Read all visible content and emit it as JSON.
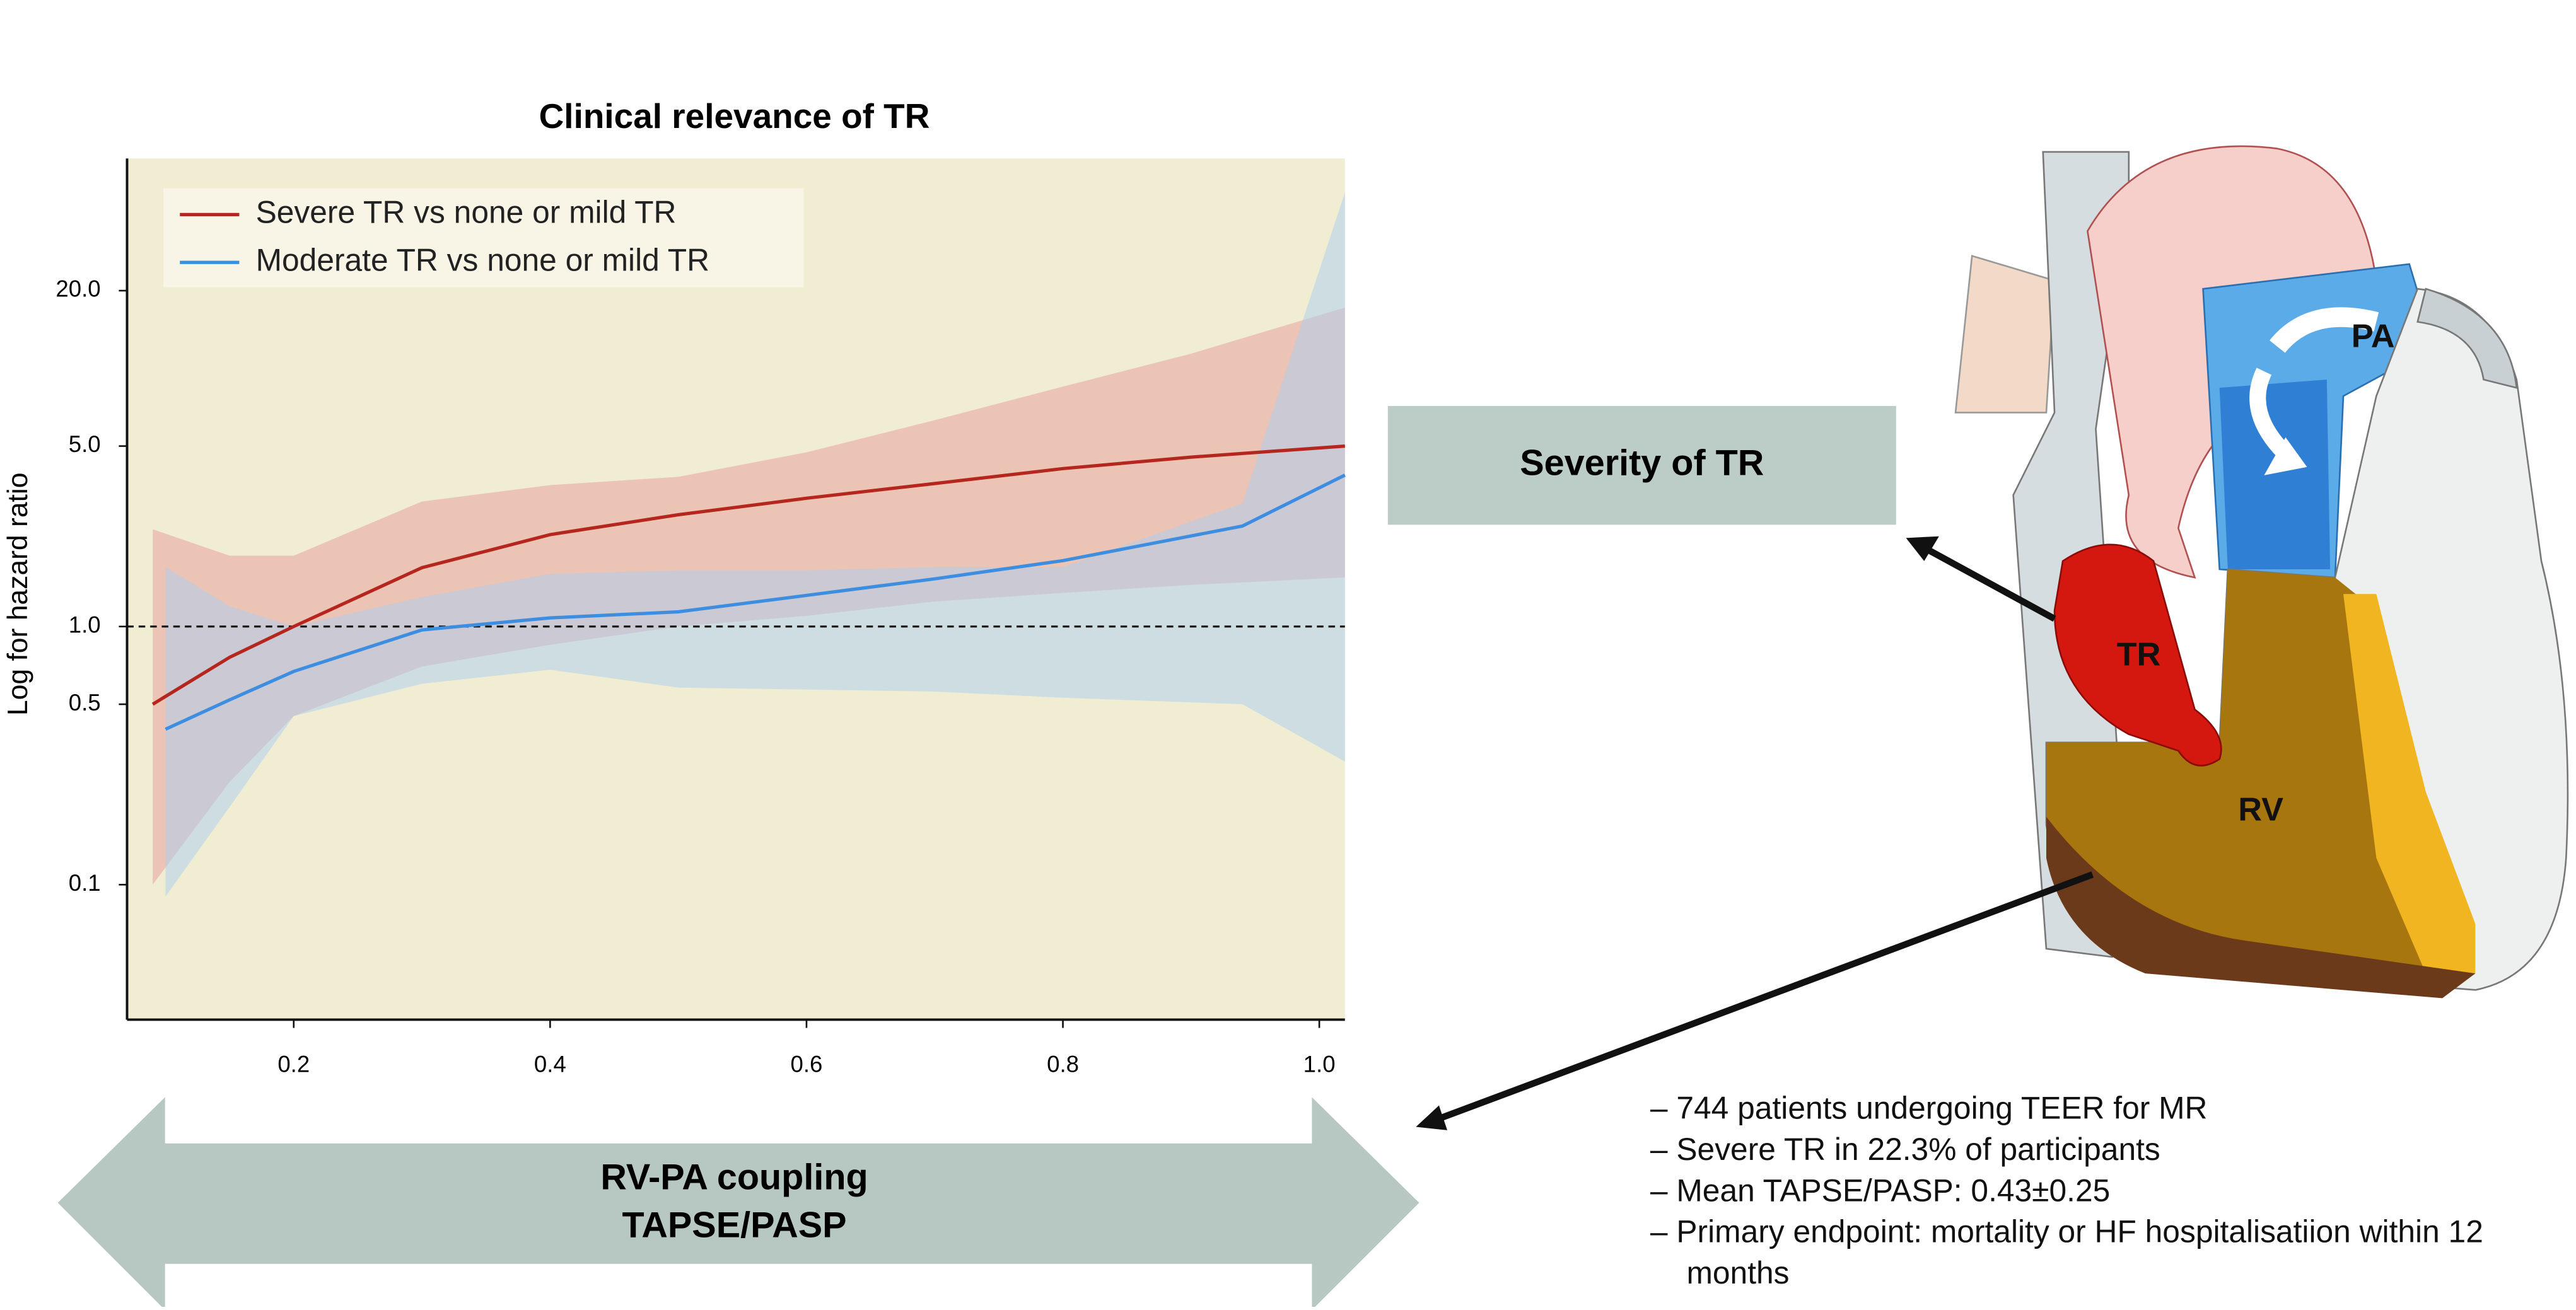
{
  "chart_data": {
    "type": "line",
    "title": "Clinical relevance of TR",
    "ylabel": "Log for hazard ratio",
    "ylog": true,
    "ylim": [
      0.03,
      65
    ],
    "yticks": [
      0.1,
      0.5,
      {
        "value": 1,
        "label": "1.0"
      },
      {
        "value": 5,
        "label": "5.0"
      },
      {
        "value": 20,
        "label": "20.0"
      }
    ],
    "xlim": [
      0.07,
      1.02
    ],
    "xticks": [
      0.2,
      0.4,
      0.6,
      0.8,
      {
        "value": 1,
        "label": "1.0"
      }
    ],
    "reference_line": 1,
    "legend": "upper left",
    "background": "#f1edd3",
    "series": [
      {
        "name": "Severe TR vs none or mild TR",
        "color": "#b5261e",
        "band_color": "#e79b98",
        "x": [
          0.09,
          0.15,
          0.2,
          0.3,
          0.4,
          0.5,
          0.6,
          0.7,
          0.8,
          0.9,
          1.02
        ],
        "values": [
          0.5,
          0.76,
          1.0,
          1.69,
          2.27,
          2.71,
          3.14,
          3.58,
          4.09,
          4.53,
          5.0
        ],
        "lower": [
          0.1,
          0.25,
          0.45,
          0.7,
          0.85,
          1.0,
          1.1,
          1.25,
          1.35,
          1.45,
          1.55
        ],
        "upper": [
          2.38,
          1.88,
          1.88,
          3.05,
          3.53,
          3.8,
          4.73,
          6.3,
          8.5,
          11.4,
          17.2
        ]
      },
      {
        "name": "Moderate TR vs none or mild TR",
        "color": "#3d8ee0",
        "band_color": "#a9cdf2",
        "x": [
          0.1,
          0.15,
          0.2,
          0.3,
          0.4,
          0.5,
          0.6,
          0.7,
          0.8,
          0.94,
          1.02
        ],
        "values": [
          0.4,
          0.52,
          0.67,
          0.97,
          1.08,
          1.14,
          1.32,
          1.53,
          1.8,
          2.45,
          3.86
        ],
        "lower": [
          0.09,
          0.2,
          0.45,
          0.6,
          0.68,
          0.58,
          0.57,
          0.56,
          0.53,
          0.5,
          0.3
        ],
        "upper": [
          1.7,
          1.2,
          1.0,
          1.3,
          1.6,
          1.65,
          1.65,
          1.7,
          1.7,
          3,
          48
        ]
      }
    ]
  },
  "illustration": {
    "severity_box": "Severity of TR",
    "coupling_arrow": [
      "RV-PA coupling",
      "TAPSE/PASP"
    ],
    "bullets": [
      "– 744 patients undergoing TEER for MR",
      "– Severe TR in 22.3% of participants",
      "– Mean TAPSE/PASP: 0.43±0.25",
      "– Primary endpoint: mortality or HF hospitalisatiion within 12 months"
    ],
    "heart_labels": [
      "PA",
      "TR",
      "RV"
    ]
  }
}
